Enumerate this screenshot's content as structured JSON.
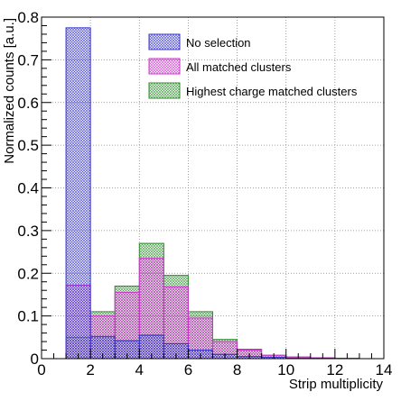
{
  "chart_data": {
    "type": "bar",
    "style": "overlaid-hatched-histogram",
    "xlabel": "Strip multiplicity",
    "ylabel": "Normalized counts [a.u.]",
    "xlim": [
      0,
      14
    ],
    "ylim": [
      0,
      0.8
    ],
    "xticks": [
      "0",
      "2",
      "4",
      "6",
      "8",
      "10",
      "12",
      "14"
    ],
    "yticks": [
      "0",
      "0.1",
      "0.2",
      "0.3",
      "0.4",
      "0.5",
      "0.6",
      "0.7",
      "0.8"
    ],
    "grid": true,
    "legend_position": "top-right",
    "bin_edges": [
      1,
      2,
      3,
      4,
      5,
      6,
      7,
      8,
      9,
      10,
      11,
      12,
      13
    ],
    "series": [
      {
        "name": "Highest charge matched clusters",
        "color": "#2e8b2e",
        "values": [
          0.05,
          0.11,
          0.17,
          0.27,
          0.195,
          0.11,
          0.045,
          0.022,
          0.008,
          0.004,
          0.002,
          0.001
        ]
      },
      {
        "name": "All matched clusters",
        "color": "#cc33cc",
        "values": [
          0.172,
          0.1,
          0.155,
          0.235,
          0.168,
          0.095,
          0.04,
          0.02,
          0.008,
          0.004,
          0.002,
          0.001
        ]
      },
      {
        "name": "No selection",
        "color": "#3333cc",
        "values": [
          0.775,
          0.052,
          0.042,
          0.055,
          0.035,
          0.02,
          0.01,
          0.005,
          0.003,
          0.001,
          0.001,
          0.0
        ]
      }
    ],
    "legend_order": [
      "No selection",
      "All matched clusters",
      "Highest charge matched clusters"
    ]
  }
}
